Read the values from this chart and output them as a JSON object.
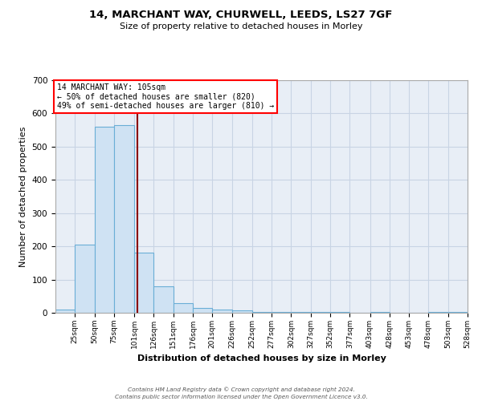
{
  "title1": "14, MARCHANT WAY, CHURWELL, LEEDS, LS27 7GF",
  "title2": "Size of property relative to detached houses in Morley",
  "xlabel": "Distribution of detached houses by size in Morley",
  "ylabel": "Number of detached properties",
  "bin_left_edges": [
    0,
    25,
    50,
    75,
    101,
    126,
    151,
    176,
    201,
    226,
    252,
    277,
    302,
    327,
    352,
    377,
    403,
    428,
    453,
    478,
    503
  ],
  "bin_widths": [
    25,
    25,
    25,
    26,
    25,
    25,
    25,
    25,
    25,
    26,
    25,
    25,
    25,
    25,
    25,
    26,
    25,
    25,
    25,
    25,
    25
  ],
  "bin_labels": [
    "25sqm",
    "50sqm",
    "75sqm",
    "101sqm",
    "126sqm",
    "151sqm",
    "176sqm",
    "201sqm",
    "226sqm",
    "252sqm",
    "277sqm",
    "302sqm",
    "327sqm",
    "352sqm",
    "377sqm",
    "403sqm",
    "428sqm",
    "453sqm",
    "478sqm",
    "503sqm",
    "528sqm"
  ],
  "counts": [
    10,
    205,
    560,
    565,
    180,
    80,
    30,
    15,
    10,
    7,
    2,
    2,
    2,
    2,
    2,
    0,
    2,
    0,
    0,
    2,
    2
  ],
  "bar_color": "#cfe2f3",
  "bar_edge_color": "#6aaed6",
  "property_size": 105,
  "vline_color": "#8b0000",
  "annotation_line1": "14 MARCHANT WAY: 105sqm",
  "annotation_line2": "← 50% of detached houses are smaller (820)",
  "annotation_line3": "49% of semi-detached houses are larger (810) →",
  "annotation_box_color": "white",
  "annotation_box_edge_color": "red",
  "ylim": [
    0,
    700
  ],
  "yticks": [
    0,
    100,
    200,
    300,
    400,
    500,
    600,
    700
  ],
  "xlim_left": 0,
  "xlim_right": 528,
  "background_color": "#e8eef6",
  "grid_color": "#c8d4e4",
  "footer1": "Contains HM Land Registry data © Crown copyright and database right 2024.",
  "footer2": "Contains public sector information licensed under the Open Government Licence v3.0."
}
